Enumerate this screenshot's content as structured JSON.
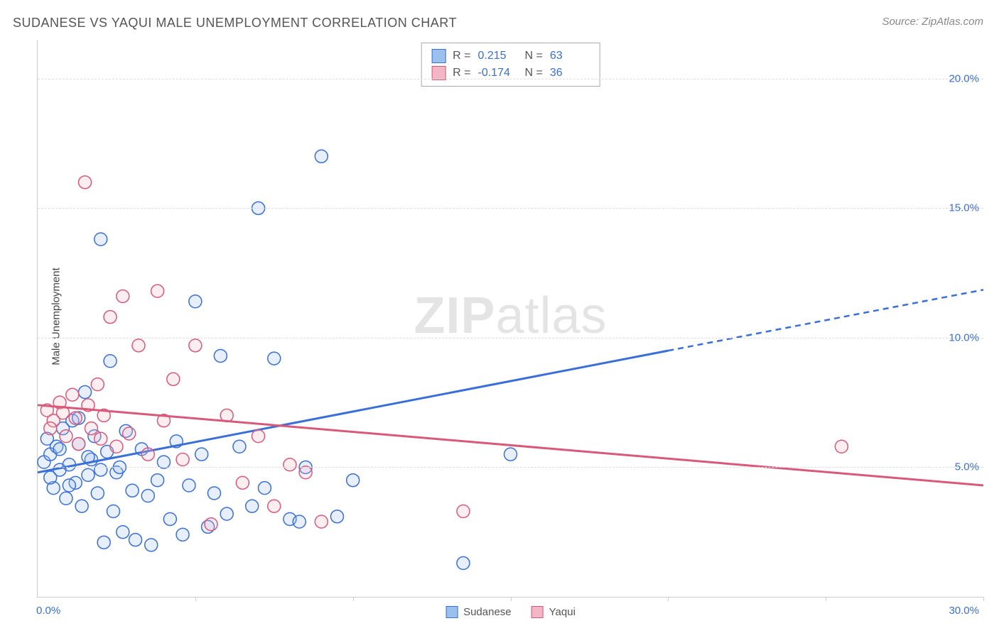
{
  "title": "SUDANESE VS YAQUI MALE UNEMPLOYMENT CORRELATION CHART",
  "source": "Source: ZipAtlas.com",
  "watermark_zip": "ZIP",
  "watermark_atlas": "atlas",
  "yaxis_label": "Male Unemployment",
  "x_origin": "0.0%",
  "x_max": "30.0%",
  "chart": {
    "type": "scatter",
    "background_color": "#ffffff",
    "grid_color": "#dddddd",
    "axis_color": "#cccccc",
    "xlim": [
      0,
      30
    ],
    "ylim": [
      0,
      21.5
    ],
    "y_ticks": [
      5.0,
      10.0,
      15.0,
      20.0
    ],
    "y_tick_labels": [
      "5.0%",
      "10.0%",
      "15.0%",
      "20.0%"
    ],
    "x_tick_positions": [
      5,
      10,
      15,
      20,
      25,
      30
    ],
    "marker_radius": 9,
    "marker_stroke_width": 1.5,
    "marker_fill_opacity": 0.25,
    "trend_line_width": 3
  },
  "series": [
    {
      "label": "Sudanese",
      "color_stroke": "#3a6fd8",
      "color_fill": "#9cc0ee",
      "R": "0.215",
      "N": "63",
      "trend": {
        "x1": 0,
        "y1": 4.8,
        "x2": 20,
        "y2": 9.5,
        "solid_until_x": 20,
        "dashed_to_x": 30
      },
      "points": [
        [
          0.2,
          5.2
        ],
        [
          0.3,
          6.1
        ],
        [
          0.4,
          5.5
        ],
        [
          0.5,
          4.2
        ],
        [
          0.6,
          5.8
        ],
        [
          0.7,
          4.9
        ],
        [
          0.8,
          6.5
        ],
        [
          0.9,
          3.8
        ],
        [
          1.0,
          5.1
        ],
        [
          1.1,
          6.8
        ],
        [
          1.2,
          4.4
        ],
        [
          1.3,
          5.9
        ],
        [
          1.4,
          3.5
        ],
        [
          1.5,
          7.9
        ],
        [
          1.6,
          4.7
        ],
        [
          1.7,
          5.3
        ],
        [
          1.8,
          6.2
        ],
        [
          1.9,
          4.0
        ],
        [
          2.0,
          13.8
        ],
        [
          2.1,
          2.1
        ],
        [
          2.2,
          5.6
        ],
        [
          2.3,
          9.1
        ],
        [
          2.4,
          3.3
        ],
        [
          2.5,
          4.8
        ],
        [
          2.6,
          5.0
        ],
        [
          2.7,
          2.5
        ],
        [
          2.8,
          6.4
        ],
        [
          3.0,
          4.1
        ],
        [
          3.1,
          2.2
        ],
        [
          3.3,
          5.7
        ],
        [
          3.5,
          3.9
        ],
        [
          3.6,
          2.0
        ],
        [
          3.8,
          4.5
        ],
        [
          4.0,
          5.2
        ],
        [
          4.2,
          3.0
        ],
        [
          4.4,
          6.0
        ],
        [
          4.6,
          2.4
        ],
        [
          4.8,
          4.3
        ],
        [
          5.0,
          11.4
        ],
        [
          5.2,
          5.5
        ],
        [
          5.4,
          2.7
        ],
        [
          5.6,
          4.0
        ],
        [
          5.8,
          9.3
        ],
        [
          6.0,
          3.2
        ],
        [
          6.4,
          5.8
        ],
        [
          6.8,
          3.5
        ],
        [
          7.0,
          15.0
        ],
        [
          7.2,
          4.2
        ],
        [
          7.5,
          9.2
        ],
        [
          8.0,
          3.0
        ],
        [
          8.3,
          2.9
        ],
        [
          8.5,
          5.0
        ],
        [
          9.0,
          17.0
        ],
        [
          9.5,
          3.1
        ],
        [
          10.0,
          4.5
        ],
        [
          13.5,
          1.3
        ],
        [
          15.0,
          5.5
        ],
        [
          0.4,
          4.6
        ],
        [
          0.7,
          5.7
        ],
        [
          1.0,
          4.3
        ],
        [
          1.3,
          6.9
        ],
        [
          1.6,
          5.4
        ],
        [
          2.0,
          4.9
        ]
      ]
    },
    {
      "label": "Yaqui",
      "color_stroke": "#d85a7a",
      "color_fill": "#f2b6c6",
      "R": "-0.174",
      "N": "36",
      "trend": {
        "x1": 0,
        "y1": 7.4,
        "x2": 30,
        "y2": 4.3,
        "solid_until_x": 30
      },
      "points": [
        [
          0.3,
          7.2
        ],
        [
          0.5,
          6.8
        ],
        [
          0.7,
          7.5
        ],
        [
          0.9,
          6.2
        ],
        [
          1.1,
          7.8
        ],
        [
          1.3,
          5.9
        ],
        [
          1.5,
          16.0
        ],
        [
          1.7,
          6.5
        ],
        [
          1.9,
          8.2
        ],
        [
          2.1,
          7.0
        ],
        [
          2.3,
          10.8
        ],
        [
          2.5,
          5.8
        ],
        [
          2.7,
          11.6
        ],
        [
          2.9,
          6.3
        ],
        [
          3.2,
          9.7
        ],
        [
          3.5,
          5.5
        ],
        [
          3.8,
          11.8
        ],
        [
          4.0,
          6.8
        ],
        [
          4.3,
          8.4
        ],
        [
          4.6,
          5.3
        ],
        [
          5.0,
          9.7
        ],
        [
          5.5,
          2.8
        ],
        [
          6.0,
          7.0
        ],
        [
          6.5,
          4.4
        ],
        [
          7.0,
          6.2
        ],
        [
          7.5,
          3.5
        ],
        [
          8.0,
          5.1
        ],
        [
          8.5,
          4.8
        ],
        [
          9.0,
          2.9
        ],
        [
          13.5,
          3.3
        ],
        [
          25.5,
          5.8
        ],
        [
          0.4,
          6.5
        ],
        [
          0.8,
          7.1
        ],
        [
          1.2,
          6.9
        ],
        [
          1.6,
          7.4
        ],
        [
          2.0,
          6.1
        ]
      ]
    }
  ],
  "legend_r_label": "R =",
  "legend_n_label": "N ="
}
